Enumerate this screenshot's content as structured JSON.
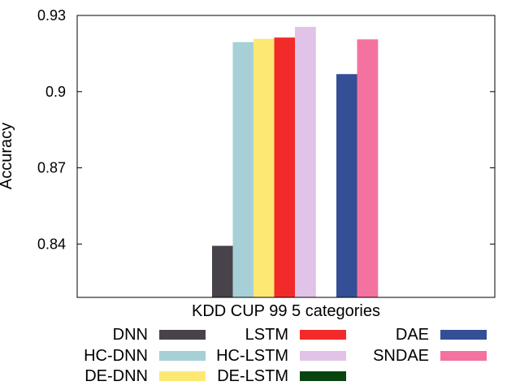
{
  "chart_data": {
    "type": "bar",
    "categories": [
      "KDD CUP 99 5 categories"
    ],
    "xlabel": "KDD CUP 99 5 categories",
    "ylabel": "Accuracy",
    "ylim": [
      0.819,
      0.93
    ],
    "yticks": [
      0.84,
      0.87,
      0.9,
      0.93
    ],
    "ytick_labels": [
      "0.84",
      "0.87",
      "0.9",
      "0.93"
    ],
    "grid": false,
    "legend_position": "bottom",
    "series": [
      {
        "name": "DNN",
        "values": [
          0.8393
        ],
        "color": "#48434a"
      },
      {
        "name": "HC-DNN",
        "values": [
          0.9195
        ],
        "color": "#a6d0d6"
      },
      {
        "name": "DE-DNN",
        "values": [
          0.9208
        ],
        "color": "#fde874"
      },
      {
        "name": "LSTM",
        "values": [
          0.9213
        ],
        "color": "#f32a2a"
      },
      {
        "name": "HC-LSTM",
        "values": [
          0.9255
        ],
        "color": "#e0c3e6"
      },
      {
        "name": "DE-LSTM",
        "values": [
          null
        ],
        "color": "#0a4410"
      },
      {
        "name": "DAE",
        "values": [
          0.9069
        ],
        "color": "#344f95"
      },
      {
        "name": "SNDAE",
        "values": [
          0.9206
        ],
        "color": "#f472a0"
      }
    ]
  }
}
